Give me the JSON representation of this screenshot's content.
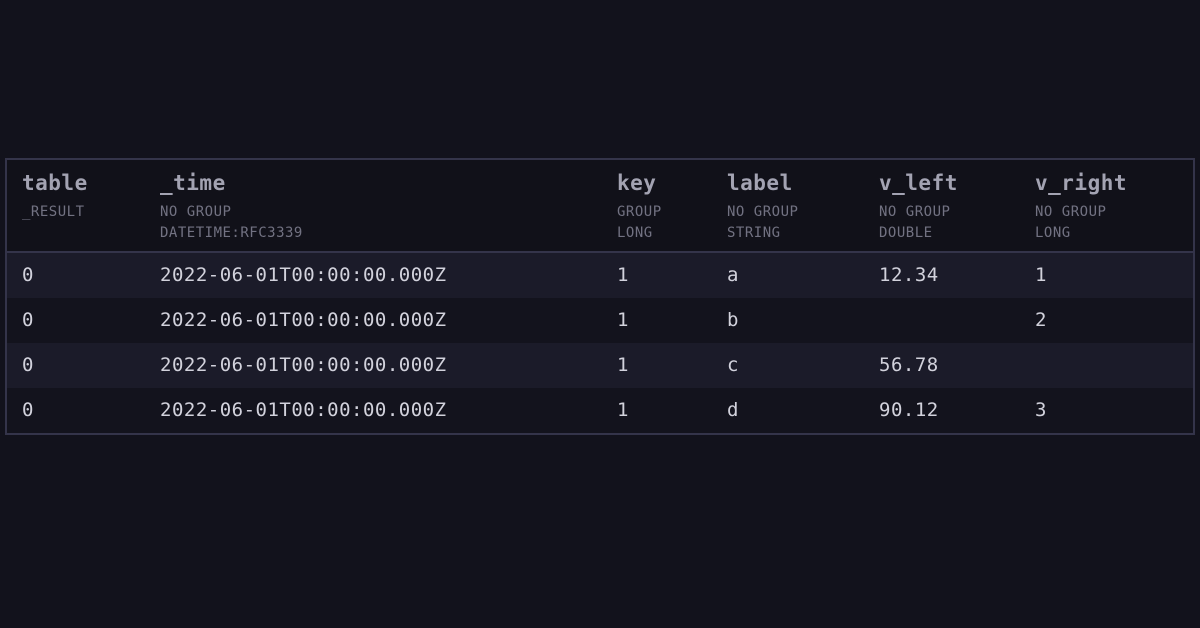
{
  "columns": [
    {
      "name": "table",
      "group": "_RESULT",
      "type": ""
    },
    {
      "name": "_time",
      "group": "NO GROUP",
      "type": "DATETIME:RFC3339"
    },
    {
      "name": "key",
      "group": "GROUP",
      "type": "LONG"
    },
    {
      "name": "label",
      "group": "NO GROUP",
      "type": "STRING"
    },
    {
      "name": "v_left",
      "group": "NO GROUP",
      "type": "DOUBLE"
    },
    {
      "name": "v_right",
      "group": "NO GROUP",
      "type": "LONG"
    }
  ],
  "rows": [
    [
      "0",
      "2022-06-01T00:00:00.000Z",
      "1",
      "a",
      "12.34",
      "1"
    ],
    [
      "0",
      "2022-06-01T00:00:00.000Z",
      "1",
      "b",
      "",
      "2"
    ],
    [
      "0",
      "2022-06-01T00:00:00.000Z",
      "1",
      "c",
      "56.78",
      ""
    ],
    [
      "0",
      "2022-06-01T00:00:00.000Z",
      "1",
      "d",
      "90.12",
      "3"
    ]
  ]
}
